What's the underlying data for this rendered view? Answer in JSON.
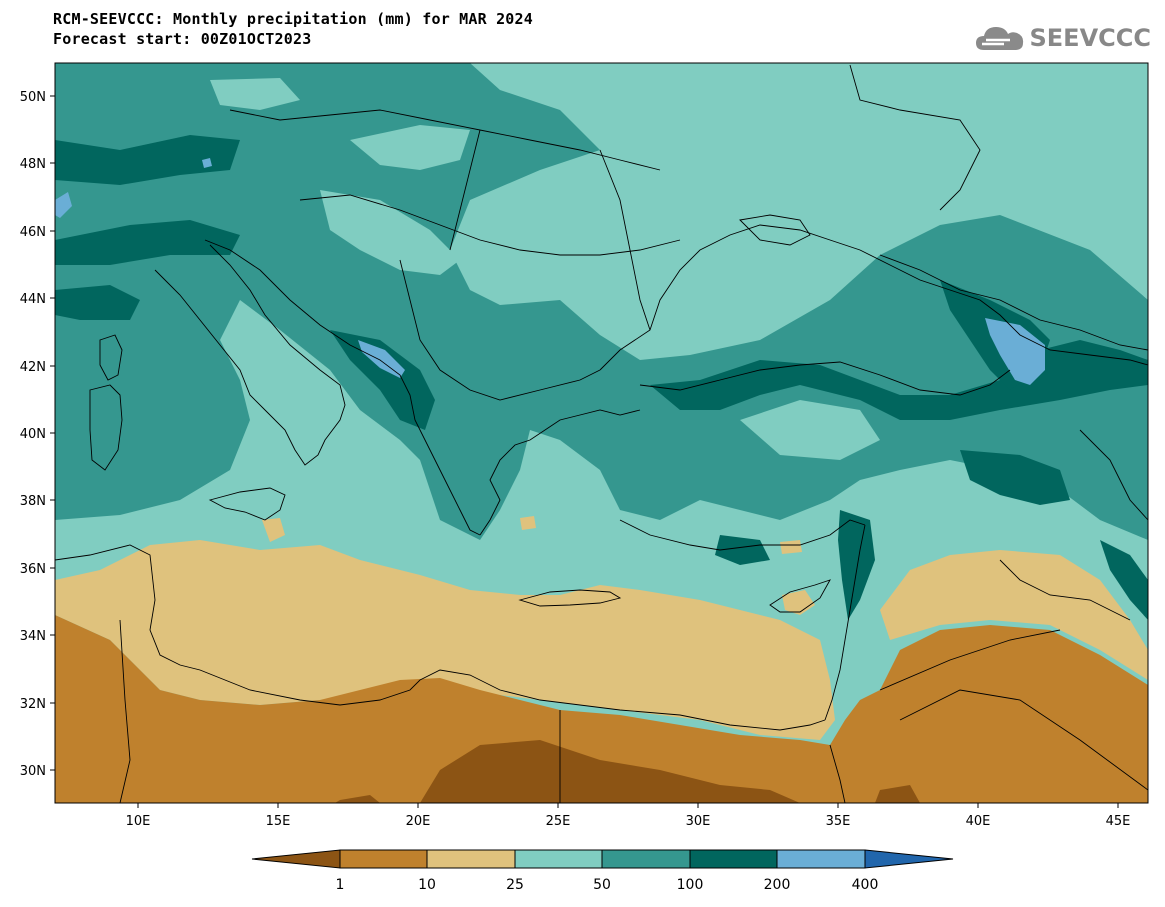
{
  "title": {
    "line1": "RCM-SEEVCCC: Monthly precipitation (mm) for MAR 2024",
    "line2": "Forecast start: 00Z01OCT2023"
  },
  "logo": {
    "text": "SEEVCCC",
    "icon": "cloud-logo-icon"
  },
  "map": {
    "lon_ticks": [
      "10E",
      "15E",
      "20E",
      "25E",
      "30E",
      "35E",
      "40E",
      "45E"
    ],
    "lat_ticks": [
      "50N",
      "48N",
      "46N",
      "44N",
      "42N",
      "40N",
      "38N",
      "36N",
      "34N",
      "32N",
      "30N"
    ]
  },
  "colorbar": {
    "levels": [
      "1",
      "10",
      "25",
      "50",
      "100",
      "200",
      "400"
    ],
    "colors": [
      "#8c5414",
      "#bf812d",
      "#dfc27d",
      "#80cdc1",
      "#35978f",
      "#01665e",
      "#6aaed6",
      "#2166ac"
    ]
  }
}
